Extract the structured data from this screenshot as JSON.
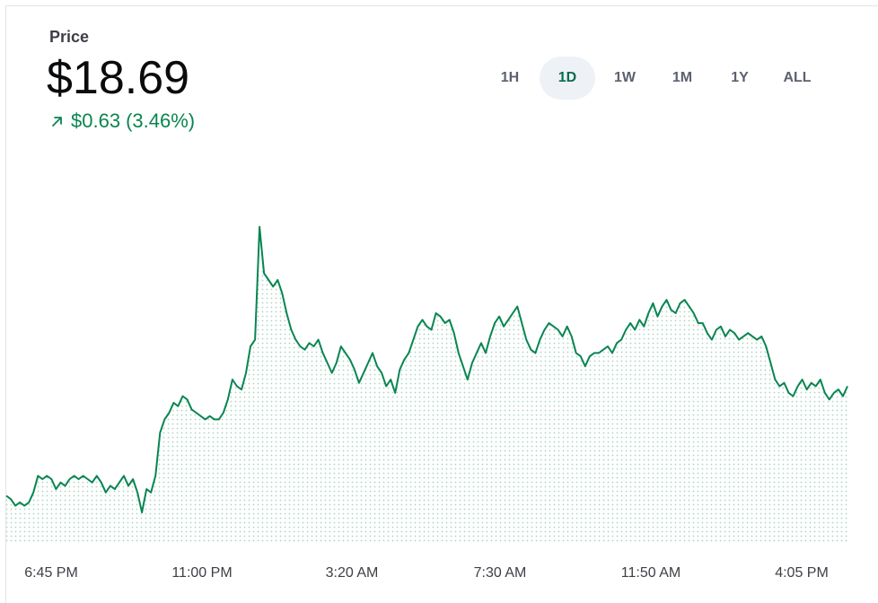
{
  "header": {
    "label": "Price",
    "price": "$18.69",
    "change_amount": "$0.63",
    "change_percent": "(3.46%)",
    "change_direction": "up"
  },
  "range_buttons": [
    {
      "label": "1H",
      "active": false
    },
    {
      "label": "1D",
      "active": true
    },
    {
      "label": "1W",
      "active": false
    },
    {
      "label": "1M",
      "active": false
    },
    {
      "label": "1Y",
      "active": false
    },
    {
      "label": "ALL",
      "active": false
    }
  ],
  "colors": {
    "line": "#098551",
    "fill_dots": "#098551",
    "active_bg": "#eef2f7"
  },
  "chart_data": {
    "type": "area",
    "x_tick_labels": [
      "6:45 PM",
      "11:00 PM",
      "3:20 AM",
      "7:30 AM",
      "11:50 AM",
      "4:05 PM"
    ],
    "ylim": [
      17.9,
      19.3
    ],
    "grid": false,
    "series": [
      {
        "values": [
          18.05,
          18.04,
          18.02,
          18.03,
          18.02,
          18.03,
          18.06,
          18.11,
          18.1,
          18.11,
          18.1,
          18.07,
          18.09,
          18.08,
          18.1,
          18.11,
          18.1,
          18.11,
          18.1,
          18.09,
          18.11,
          18.09,
          18.06,
          18.08,
          18.07,
          18.09,
          18.11,
          18.08,
          18.1,
          18.06,
          18.0,
          18.07,
          18.06,
          18.11,
          18.24,
          18.28,
          18.3,
          18.33,
          18.32,
          18.35,
          18.34,
          18.31,
          18.3,
          18.29,
          18.28,
          18.29,
          18.28,
          18.28,
          18.3,
          18.34,
          18.4,
          18.38,
          18.37,
          18.42,
          18.5,
          18.52,
          18.86,
          18.72,
          18.7,
          18.68,
          18.7,
          18.66,
          18.6,
          18.55,
          18.52,
          18.5,
          18.49,
          18.51,
          18.5,
          18.52,
          18.48,
          18.45,
          18.42,
          18.45,
          18.5,
          18.48,
          18.46,
          18.43,
          18.39,
          18.42,
          18.45,
          18.48,
          18.44,
          18.42,
          18.38,
          18.4,
          18.36,
          18.43,
          18.46,
          18.48,
          18.52,
          18.56,
          18.58,
          18.56,
          18.55,
          18.6,
          18.59,
          18.57,
          18.58,
          18.54,
          18.48,
          18.44,
          18.4,
          18.45,
          18.48,
          18.51,
          18.48,
          18.53,
          18.57,
          18.59,
          18.56,
          18.58,
          18.6,
          18.62,
          18.57,
          18.52,
          18.49,
          18.48,
          18.52,
          18.55,
          18.57,
          18.56,
          18.55,
          18.53,
          18.56,
          18.53,
          18.48,
          18.47,
          18.44,
          18.47,
          18.48,
          18.48,
          18.49,
          18.5,
          18.48,
          18.51,
          18.52,
          18.55,
          18.57,
          18.55,
          18.58,
          18.56,
          18.6,
          18.63,
          18.59,
          18.62,
          18.64,
          18.61,
          18.6,
          18.63,
          18.64,
          18.62,
          18.6,
          18.57,
          18.57,
          18.54,
          18.52,
          18.55,
          18.56,
          18.53,
          18.55,
          18.54,
          18.52,
          18.53,
          18.54,
          18.53,
          18.52,
          18.53,
          18.5,
          18.45,
          18.4,
          18.38,
          18.39,
          18.36,
          18.35,
          18.38,
          18.4,
          18.37,
          18.39,
          18.38,
          18.4,
          18.36,
          18.34,
          18.36,
          18.37,
          18.35,
          18.38
        ],
        "color": "#098551"
      }
    ]
  }
}
